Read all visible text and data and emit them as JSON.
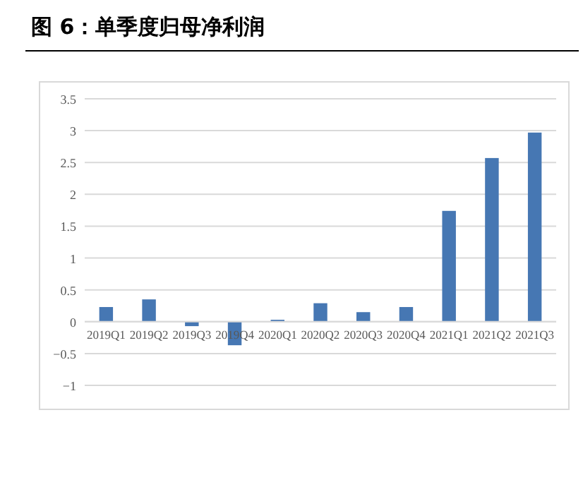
{
  "chart_data": {
    "type": "bar",
    "title": "图 6：单季度归母净利润",
    "categories": [
      "2019Q1",
      "2019Q2",
      "2019Q3",
      "2019Q4",
      "2020Q1",
      "2020Q2",
      "2020Q3",
      "2020Q4",
      "2021Q1",
      "2021Q2",
      "2021Q3"
    ],
    "values": [
      0.23,
      0.35,
      -0.07,
      -0.37,
      0.03,
      0.29,
      0.15,
      0.23,
      1.74,
      2.57,
      2.97
    ],
    "color": "#4677b3",
    "ylim": [
      -1,
      3.5
    ],
    "yticks": [
      -1,
      -0.5,
      0,
      0.5,
      1,
      1.5,
      2,
      2.5,
      3,
      3.5
    ],
    "grid": "y"
  }
}
